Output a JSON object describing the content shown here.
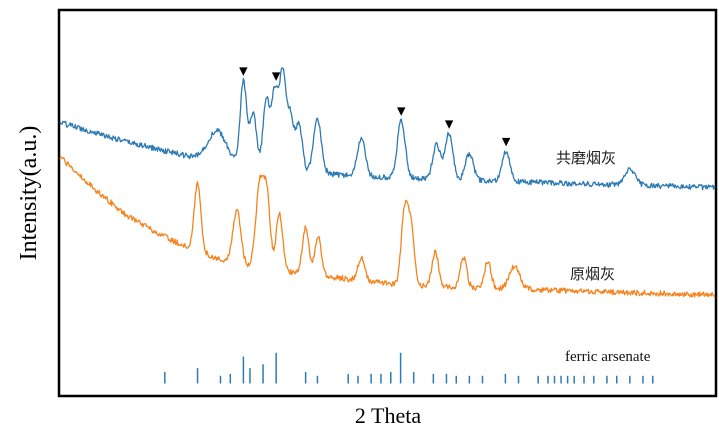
{
  "chart_data": {
    "type": "line",
    "title": "",
    "xlabel": "2 Theta",
    "ylabel": "Intensity(a.u.)",
    "xlim": [
      0,
      100
    ],
    "ylim": [
      0,
      100
    ],
    "grid": false,
    "legend": "none",
    "colors": {
      "upper": "#2d7bb5",
      "lower": "#f5841f",
      "reference": "#2d7bb5",
      "marker": "#000000"
    },
    "series": [
      {
        "name": "共磨烟灰",
        "baseline": [
          [
            0,
            71
          ],
          [
            10,
            66
          ],
          [
            20,
            62
          ],
          [
            30,
            59
          ],
          [
            45,
            57
          ],
          [
            60,
            56
          ],
          [
            80,
            55
          ],
          [
            100,
            54
          ]
        ],
        "peaks": [
          [
            24.0,
            8,
            1.4
          ],
          [
            28.0,
            22,
            0.5
          ],
          [
            29.5,
            14,
            0.5
          ],
          [
            31.5,
            18,
            0.5
          ],
          [
            32.8,
            20,
            0.5
          ],
          [
            34.0,
            25,
            0.5
          ],
          [
            35.2,
            14,
            0.5
          ],
          [
            36.5,
            12,
            0.5
          ],
          [
            39.3,
            14,
            0.6
          ],
          [
            46.0,
            10,
            0.6
          ],
          [
            52.1,
            15,
            0.6
          ],
          [
            57.5,
            9,
            0.6
          ],
          [
            59.4,
            12,
            0.6
          ],
          [
            62.5,
            7,
            0.6
          ],
          [
            68.1,
            8,
            0.6
          ],
          [
            87.0,
            4,
            0.8
          ]
        ]
      },
      {
        "name": "原烟灰",
        "baseline": [
          [
            0,
            62
          ],
          [
            5,
            54
          ],
          [
            10,
            47
          ],
          [
            15,
            42
          ],
          [
            20,
            38
          ],
          [
            25,
            35
          ],
          [
            30,
            33
          ],
          [
            40,
            31
          ],
          [
            50,
            29
          ],
          [
            60,
            28
          ],
          [
            80,
            27
          ],
          [
            100,
            26
          ]
        ],
        "peaks": [
          [
            21.0,
            18,
            0.5
          ],
          [
            27.0,
            14,
            0.6
          ],
          [
            30.5,
            22,
            0.6
          ],
          [
            31.6,
            18,
            0.5
          ],
          [
            33.5,
            15,
            0.5
          ],
          [
            37.5,
            12,
            0.5
          ],
          [
            39.4,
            10,
            0.5
          ],
          [
            46.0,
            6,
            0.5
          ],
          [
            52.6,
            19,
            0.5
          ],
          [
            53.6,
            15,
            0.5
          ],
          [
            57.3,
            9,
            0.5
          ],
          [
            61.6,
            8,
            0.5
          ],
          [
            65.3,
            7,
            0.5
          ],
          [
            69.4,
            6,
            0.8
          ]
        ]
      }
    ],
    "markers": {
      "symbol": "▼",
      "x": [
        28.0,
        33.0,
        52.1,
        59.4,
        68.1
      ]
    },
    "reference": {
      "name": "ferric arsenate",
      "lines": [
        [
          16,
          3
        ],
        [
          21,
          4
        ],
        [
          24.5,
          2
        ],
        [
          26,
          2.5
        ],
        [
          28,
          7
        ],
        [
          29,
          4
        ],
        [
          31,
          5
        ],
        [
          33,
          8
        ],
        [
          37.5,
          3
        ],
        [
          39.3,
          2
        ],
        [
          44,
          2.5
        ],
        [
          45.5,
          2
        ],
        [
          47.5,
          2.5
        ],
        [
          49,
          2.5
        ],
        [
          50.5,
          3
        ],
        [
          52,
          8
        ],
        [
          54,
          3
        ],
        [
          57,
          2.5
        ],
        [
          59,
          2.5
        ],
        [
          60.5,
          2
        ],
        [
          62.5,
          2
        ],
        [
          64.5,
          2
        ],
        [
          68,
          2.5
        ],
        [
          70,
          2
        ],
        [
          73,
          2
        ],
        [
          74.5,
          2
        ],
        [
          75.5,
          2
        ],
        [
          76.5,
          2
        ],
        [
          77.5,
          2
        ],
        [
          78.5,
          2
        ],
        [
          80,
          2
        ],
        [
          81.5,
          2
        ],
        [
          83.5,
          2
        ],
        [
          85,
          2
        ],
        [
          87,
          2
        ],
        [
          89,
          2
        ],
        [
          90.5,
          2
        ]
      ]
    }
  }
}
